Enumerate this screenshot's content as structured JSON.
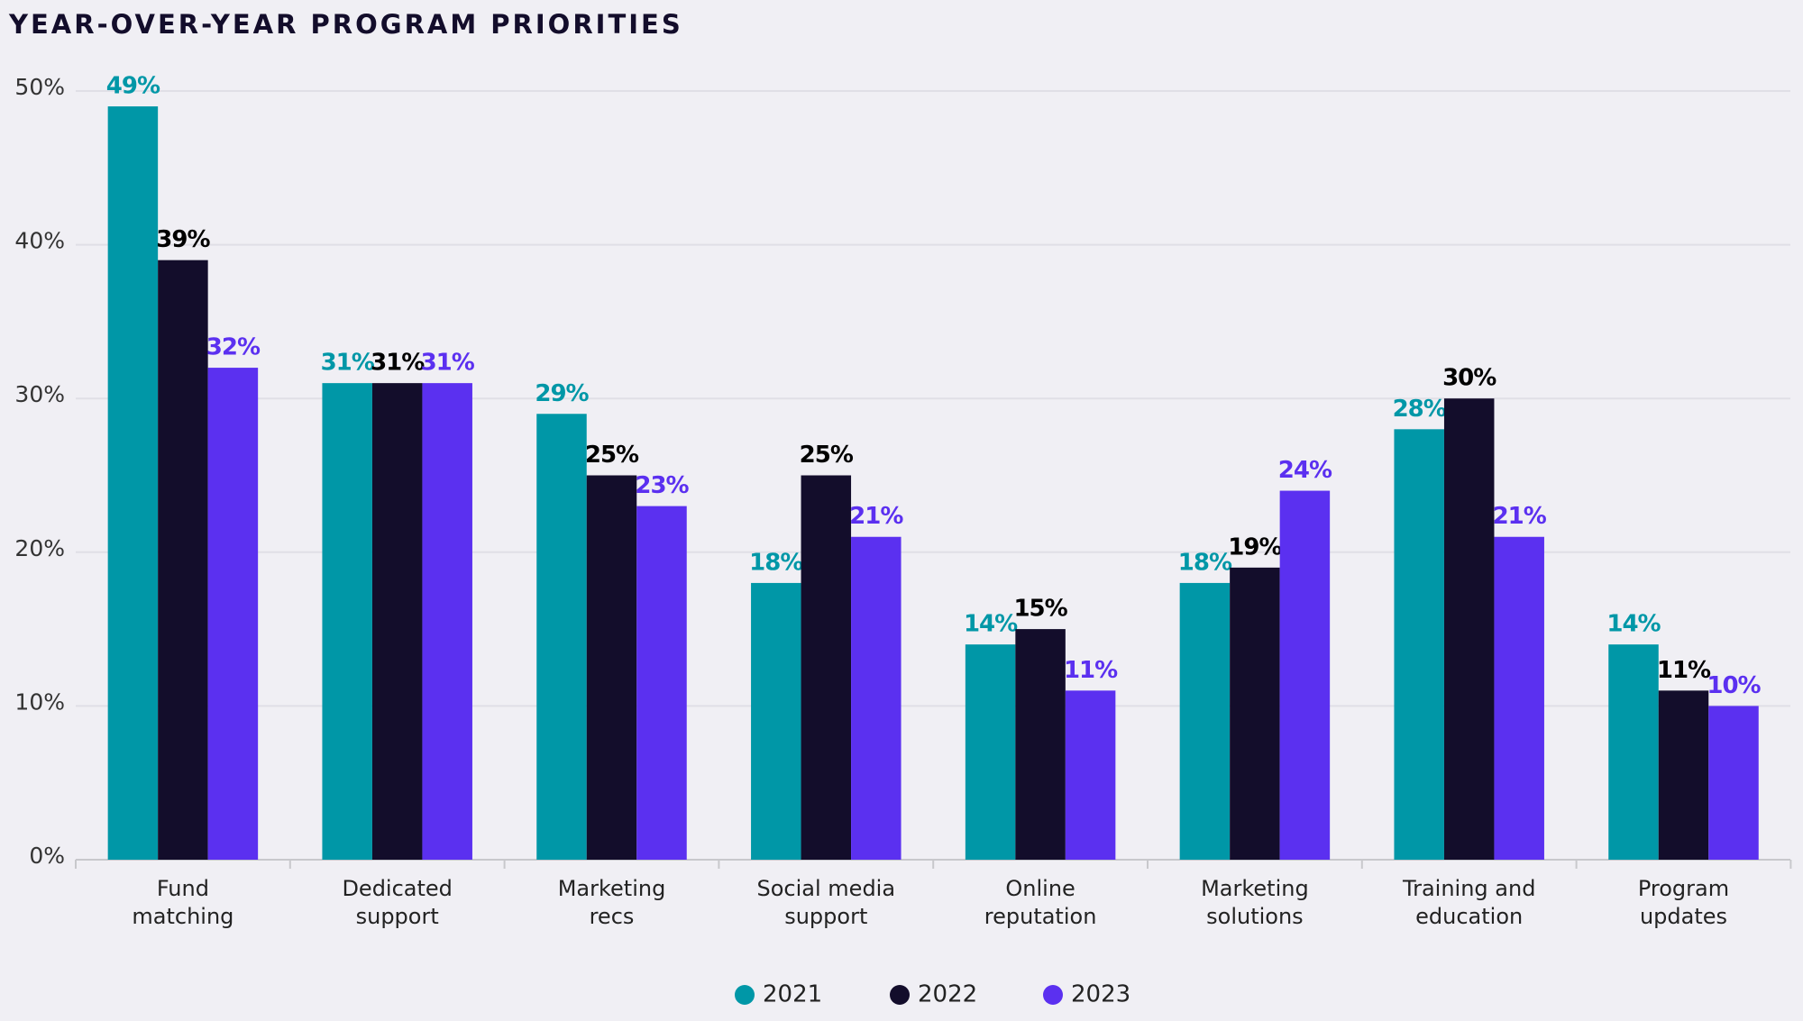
{
  "chart_data": {
    "type": "bar",
    "title": "YEAR-OVER-YEAR PROGRAM PRIORITIES",
    "categories": [
      [
        "Fund",
        "matching"
      ],
      [
        "Dedicated",
        "support"
      ],
      [
        "Marketing",
        "recs"
      ],
      [
        "Social media",
        "support"
      ],
      [
        "Online",
        "reputation"
      ],
      [
        "Marketing",
        "solutions"
      ],
      [
        "Training and",
        "education"
      ],
      [
        "Program",
        "updates"
      ]
    ],
    "series": [
      {
        "name": "2021",
        "color": "#0097a7",
        "label_color": "#0097a7",
        "values": [
          49,
          31,
          29,
          18,
          14,
          18,
          28,
          14
        ],
        "value_labels": [
          "49%",
          "31%",
          "29%",
          "18%",
          "14%",
          "18%",
          "28%",
          "14%"
        ]
      },
      {
        "name": "2022",
        "color": "#130d2b",
        "label_color": "#000000",
        "values": [
          39,
          31,
          25,
          25,
          15,
          19,
          30,
          11
        ],
        "value_labels": [
          "39%",
          "31%",
          "25%",
          "25%",
          "15%",
          "19%",
          "30%",
          "11%"
        ]
      },
      {
        "name": "2023",
        "color": "#5b30f0",
        "label_color": "#5b30f0",
        "values": [
          32,
          31,
          23,
          21,
          11,
          24,
          21,
          10
        ],
        "value_labels": [
          "32%",
          "31%",
          "23%",
          "21%",
          "11%",
          "24%",
          "21%",
          "10%"
        ]
      }
    ],
    "ylim": [
      0,
      50
    ],
    "yticks": [
      {
        "value": 0,
        "label": "0%"
      },
      {
        "value": 10,
        "label": "10%"
      },
      {
        "value": 20,
        "label": "20%"
      },
      {
        "value": 30,
        "label": "30%"
      },
      {
        "value": 40,
        "label": "40%"
      },
      {
        "value": 50,
        "label": "50%"
      }
    ],
    "grid": true,
    "legend": "bottom"
  }
}
